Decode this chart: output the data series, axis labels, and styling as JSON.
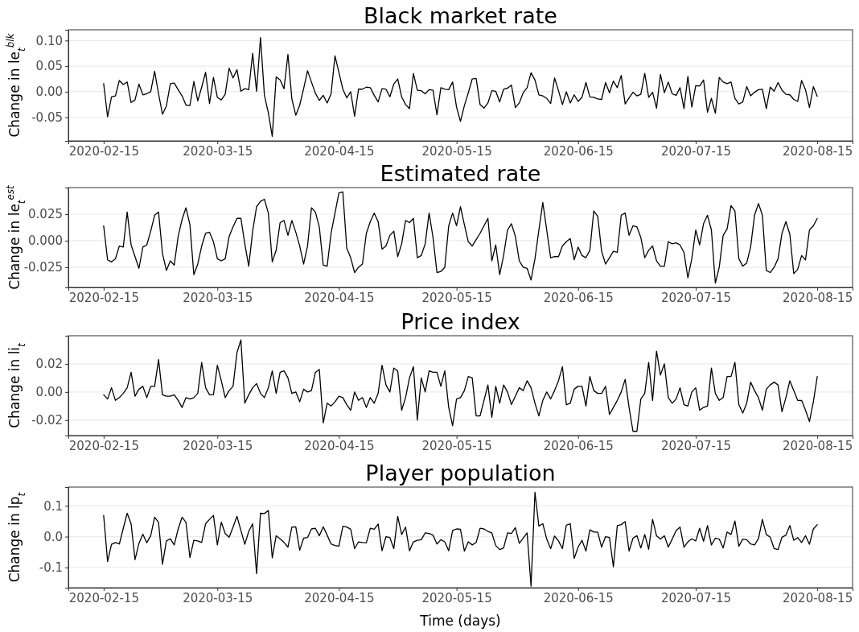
{
  "chart_data": [
    {
      "type": "line",
      "title": "Black market rate",
      "ylabel": "Change in le$_{t}$$^{blk}$",
      "grid": "y",
      "xlim": [
        "2020-02-06",
        "2020-08-24"
      ],
      "xticks": [
        "2020-02-15",
        "2020-03-15",
        "2020-04-15",
        "2020-05-15",
        "2020-06-15",
        "2020-07-15",
        "2020-08-15"
      ],
      "ylim": [
        -0.096,
        0.121
      ],
      "yticks": [
        {
          "value": -0.05,
          "label": "-0.05"
        },
        {
          "value": 0,
          "label": "0.00"
        },
        {
          "value": 0.05,
          "label": "0.05"
        },
        {
          "value": 0.1,
          "label": "0.10"
        }
      ],
      "x": [
        "2020-02-15",
        "2020-02-16",
        "2020-02-17",
        "2020-02-18",
        "2020-02-19",
        "2020-02-20",
        "2020-02-21",
        "2020-02-22",
        "2020-02-23",
        "2020-02-24",
        "2020-02-25",
        "2020-02-26",
        "2020-02-27",
        "2020-02-28",
        "2020-02-29",
        "2020-03-01",
        "2020-03-02",
        "2020-03-03",
        "2020-03-04",
        "2020-03-05",
        "2020-03-06",
        "2020-03-07",
        "2020-03-08",
        "2020-03-09",
        "2020-03-10",
        "2020-03-11",
        "2020-03-12",
        "2020-03-13",
        "2020-03-14",
        "2020-03-15",
        "2020-03-16",
        "2020-03-17",
        "2020-03-18",
        "2020-03-19",
        "2020-03-20",
        "2020-03-21",
        "2020-03-22",
        "2020-03-23",
        "2020-03-24",
        "2020-03-25",
        "2020-03-26",
        "2020-03-27",
        "2020-03-28",
        "2020-03-29",
        "2020-03-30",
        "2020-03-31",
        "2020-04-01",
        "2020-04-02",
        "2020-04-03",
        "2020-04-04",
        "2020-04-05",
        "2020-04-06",
        "2020-04-07",
        "2020-04-08",
        "2020-04-09",
        "2020-04-10",
        "2020-04-11",
        "2020-04-12",
        "2020-04-13",
        "2020-04-14",
        "2020-04-15",
        "2020-04-16",
        "2020-04-17",
        "2020-04-18",
        "2020-04-19",
        "2020-04-20",
        "2020-04-21",
        "2020-04-22",
        "2020-04-23",
        "2020-04-24",
        "2020-04-25",
        "2020-04-26",
        "2020-04-27",
        "2020-04-28",
        "2020-04-29",
        "2020-04-30",
        "2020-05-01",
        "2020-05-02",
        "2020-05-03",
        "2020-05-04",
        "2020-05-05",
        "2020-05-06",
        "2020-05-07",
        "2020-05-08",
        "2020-05-09",
        "2020-05-10",
        "2020-05-11",
        "2020-05-12",
        "2020-05-13",
        "2020-05-14",
        "2020-05-15",
        "2020-05-16",
        "2020-05-17",
        "2020-05-18",
        "2020-05-19",
        "2020-05-20",
        "2020-05-21",
        "2020-05-22",
        "2020-05-23",
        "2020-05-24",
        "2020-05-25",
        "2020-05-26",
        "2020-05-27",
        "2020-05-28",
        "2020-05-29",
        "2020-05-30",
        "2020-05-31",
        "2020-06-01",
        "2020-06-02",
        "2020-06-03",
        "2020-06-04",
        "2020-06-05",
        "2020-06-06",
        "2020-06-07",
        "2020-06-08",
        "2020-06-09",
        "2020-06-10",
        "2020-06-11",
        "2020-06-12",
        "2020-06-13",
        "2020-06-14",
        "2020-06-15",
        "2020-06-16",
        "2020-06-17",
        "2020-06-18",
        "2020-06-19",
        "2020-06-20",
        "2020-06-21",
        "2020-06-22",
        "2020-06-23",
        "2020-06-24",
        "2020-06-25",
        "2020-06-26",
        "2020-06-27",
        "2020-06-28",
        "2020-06-29",
        "2020-06-30",
        "2020-07-01",
        "2020-07-02",
        "2020-07-03",
        "2020-07-04",
        "2020-07-05",
        "2020-07-06",
        "2020-07-07",
        "2020-07-08",
        "2020-07-09",
        "2020-07-10",
        "2020-07-11",
        "2020-07-12",
        "2020-07-13",
        "2020-07-14",
        "2020-07-15",
        "2020-07-16",
        "2020-07-17",
        "2020-07-18",
        "2020-07-19",
        "2020-07-20",
        "2020-07-21",
        "2020-07-22",
        "2020-07-23",
        "2020-07-24",
        "2020-07-25",
        "2020-07-26",
        "2020-07-27",
        "2020-07-28",
        "2020-07-29",
        "2020-07-30",
        "2020-07-31",
        "2020-08-01",
        "2020-08-02",
        "2020-08-03",
        "2020-08-04",
        "2020-08-05",
        "2020-08-06",
        "2020-08-07",
        "2020-08-08",
        "2020-08-09",
        "2020-08-10",
        "2020-08-11",
        "2020-08-12",
        "2020-08-13",
        "2020-08-14",
        "2020-08-15"
      ],
      "series": [
        {
          "color": "#000000",
          "values": [
            0.016,
            -0.049,
            -0.01,
            -0.008,
            0.022,
            0.014,
            0.019,
            -0.021,
            -0.016,
            0.015,
            -0.006,
            -0.004,
            0.0,
            0.04,
            -0.004,
            -0.044,
            -0.028,
            0.016,
            0.017,
            0.004,
            -0.008,
            -0.026,
            -0.027,
            0.02,
            -0.018,
            0.009,
            0.038,
            -0.023,
            0.028,
            -0.011,
            -0.016,
            -0.005,
            0.046,
            0.027,
            0.043,
            0.001,
            0.006,
            0.004,
            0.075,
            0.001,
            0.106,
            -0.007,
            -0.041,
            -0.087,
            0.029,
            0.023,
            0.006,
            0.073,
            -0.014,
            -0.046,
            -0.026,
            0.006,
            0.041,
            0.019,
            -0.003,
            -0.017,
            -0.007,
            -0.022,
            -0.004,
            0.07,
            0.038,
            0.005,
            -0.012,
            0.0,
            -0.048,
            0.005,
            0.005,
            0.009,
            0.008,
            -0.007,
            -0.02,
            0.006,
            0.005,
            -0.01,
            0.015,
            0.025,
            -0.01,
            -0.025,
            -0.033,
            0.036,
            0.003,
            0.002,
            -0.004,
            0.004,
            0.003,
            -0.045,
            0.008,
            0.005,
            0.004,
            0.019,
            -0.03,
            -0.058,
            -0.027,
            -0.002,
            0.025,
            0.026,
            -0.025,
            -0.032,
            -0.022,
            0.002,
            0.001,
            -0.02,
            0.005,
            0.007,
            0.013,
            -0.031,
            -0.022,
            -0.002,
            0.008,
            0.037,
            0.023,
            -0.006,
            -0.008,
            -0.013,
            -0.023,
            0.027,
            0.002,
            -0.025,
            0.0,
            -0.022,
            -0.006,
            -0.019,
            -0.011,
            0.018,
            -0.01,
            -0.011,
            -0.014,
            -0.015,
            0.018,
            -0.002,
            0.021,
            0.008,
            0.032,
            -0.024,
            -0.012,
            -0.001,
            -0.008,
            -0.005,
            0.036,
            -0.011,
            -0.001,
            -0.032,
            0.034,
            -0.002,
            0.019,
            -0.004,
            -0.007,
            0.008,
            -0.033,
            0.03,
            -0.03,
            0.012,
            0.011,
            0.023,
            -0.04,
            -0.013,
            -0.042,
            0.028,
            0.019,
            0.016,
            0.019,
            -0.013,
            -0.024,
            -0.02,
            0.01,
            -0.008,
            -0.001,
            0.004,
            0.005,
            -0.033,
            0.009,
            0.001,
            0.018,
            0.003,
            -0.005,
            -0.006,
            -0.015,
            -0.019,
            0.022,
            0.004,
            -0.031,
            0.01,
            -0.009
          ]
        }
      ]
    },
    {
      "type": "line",
      "title": "Estimated rate",
      "ylabel": "Change in le$_{t}$$^{est}$",
      "grid": "y",
      "xlim": [
        "2020-02-06",
        "2020-08-24"
      ],
      "xticks": [
        "2020-02-15",
        "2020-03-15",
        "2020-04-15",
        "2020-05-15",
        "2020-06-15",
        "2020-07-15",
        "2020-08-15"
      ],
      "ylim": [
        -0.044,
        0.05
      ],
      "yticks": [
        {
          "value": -0.025,
          "label": "-0.025"
        },
        {
          "value": 0,
          "label": "0.000"
        },
        {
          "value": 0.025,
          "label": "0.025"
        }
      ],
      "x": [
        "2020-02-15",
        "2020-02-16",
        "2020-02-17",
        "2020-02-18",
        "2020-02-19",
        "2020-02-20",
        "2020-02-21",
        "2020-02-22",
        "2020-02-23",
        "2020-02-24",
        "2020-02-25",
        "2020-02-26",
        "2020-02-27",
        "2020-02-28",
        "2020-02-29",
        "2020-03-01",
        "2020-03-02",
        "2020-03-03",
        "2020-03-04",
        "2020-03-05",
        "2020-03-06",
        "2020-03-07",
        "2020-03-08",
        "2020-03-09",
        "2020-03-10",
        "2020-03-11",
        "2020-03-12",
        "2020-03-13",
        "2020-03-14",
        "2020-03-15",
        "2020-03-16",
        "2020-03-17",
        "2020-03-18",
        "2020-03-19",
        "2020-03-20",
        "2020-03-21",
        "2020-03-22",
        "2020-03-23",
        "2020-03-24",
        "2020-03-25",
        "2020-03-26",
        "2020-03-27",
        "2020-03-28",
        "2020-03-29",
        "2020-03-30",
        "2020-03-31",
        "2020-04-01",
        "2020-04-02",
        "2020-04-03",
        "2020-04-04",
        "2020-04-05",
        "2020-04-06",
        "2020-04-07",
        "2020-04-08",
        "2020-04-09",
        "2020-04-10",
        "2020-04-11",
        "2020-04-12",
        "2020-04-13",
        "2020-04-14",
        "2020-04-15",
        "2020-04-16",
        "2020-04-17",
        "2020-04-18",
        "2020-04-19",
        "2020-04-20",
        "2020-04-21",
        "2020-04-22",
        "2020-04-23",
        "2020-04-24",
        "2020-04-25",
        "2020-04-26",
        "2020-04-27",
        "2020-04-28",
        "2020-04-29",
        "2020-04-30",
        "2020-05-01",
        "2020-05-02",
        "2020-05-03",
        "2020-05-04",
        "2020-05-05",
        "2020-05-06",
        "2020-05-07",
        "2020-05-08",
        "2020-05-09",
        "2020-05-10",
        "2020-05-11",
        "2020-05-12",
        "2020-05-13",
        "2020-05-14",
        "2020-05-15",
        "2020-05-16",
        "2020-05-17",
        "2020-05-18",
        "2020-05-19",
        "2020-05-20",
        "2020-05-21",
        "2020-05-22",
        "2020-05-23",
        "2020-05-24",
        "2020-05-25",
        "2020-05-26",
        "2020-05-27",
        "2020-05-28",
        "2020-05-29",
        "2020-05-30",
        "2020-05-31",
        "2020-06-01",
        "2020-06-02",
        "2020-06-03",
        "2020-06-04",
        "2020-06-05",
        "2020-06-06",
        "2020-06-07",
        "2020-06-08",
        "2020-06-09",
        "2020-06-10",
        "2020-06-11",
        "2020-06-12",
        "2020-06-13",
        "2020-06-14",
        "2020-06-15",
        "2020-06-16",
        "2020-06-17",
        "2020-06-18",
        "2020-06-19",
        "2020-06-20",
        "2020-06-21",
        "2020-06-22",
        "2020-06-23",
        "2020-06-24",
        "2020-06-25",
        "2020-06-26",
        "2020-06-27",
        "2020-06-28",
        "2020-06-29",
        "2020-06-30",
        "2020-07-01",
        "2020-07-02",
        "2020-07-03",
        "2020-07-04",
        "2020-07-05",
        "2020-07-06",
        "2020-07-07",
        "2020-07-08",
        "2020-07-09",
        "2020-07-10",
        "2020-07-11",
        "2020-07-12",
        "2020-07-13",
        "2020-07-14",
        "2020-07-15",
        "2020-07-16",
        "2020-07-17",
        "2020-07-18",
        "2020-07-19",
        "2020-07-20",
        "2020-07-21",
        "2020-07-22",
        "2020-07-23",
        "2020-07-24",
        "2020-07-25",
        "2020-07-26",
        "2020-07-27",
        "2020-07-28",
        "2020-07-29",
        "2020-07-30",
        "2020-07-31",
        "2020-08-01",
        "2020-08-02",
        "2020-08-03",
        "2020-08-04",
        "2020-08-05",
        "2020-08-06",
        "2020-08-07",
        "2020-08-08",
        "2020-08-09",
        "2020-08-10",
        "2020-08-11",
        "2020-08-12",
        "2020-08-13",
        "2020-08-14",
        "2020-08-15"
      ],
      "series": [
        {
          "color": "#000000",
          "values": [
            0.014,
            -0.018,
            -0.02,
            -0.017,
            -0.005,
            -0.006,
            0.027,
            -0.004,
            -0.015,
            -0.026,
            -0.006,
            -0.004,
            0.009,
            0.024,
            0.027,
            -0.012,
            -0.028,
            -0.019,
            -0.023,
            0.004,
            0.02,
            0.031,
            0.015,
            -0.032,
            -0.022,
            -0.005,
            0.007,
            0.008,
            -0.001,
            -0.017,
            -0.019,
            -0.017,
            0.004,
            0.013,
            0.021,
            0.021,
            -0.003,
            -0.024,
            0.009,
            0.032,
            0.037,
            0.039,
            0.026,
            -0.02,
            -0.009,
            0.017,
            0.019,
            0.005,
            0.019,
            0.008,
            -0.005,
            -0.022,
            -0.005,
            0.031,
            0.027,
            0.013,
            -0.023,
            -0.024,
            0.007,
            0.026,
            0.045,
            0.046,
            -0.007,
            -0.016,
            -0.03,
            -0.025,
            -0.022,
            0.007,
            0.018,
            0.026,
            0.018,
            -0.008,
            -0.005,
            0.005,
            0.009,
            -0.015,
            -0.003,
            0.019,
            0.017,
            0.021,
            -0.016,
            -0.014,
            -0.003,
            0.026,
            0.003,
            -0.03,
            -0.029,
            -0.025,
            0.014,
            0.026,
            0.014,
            0.032,
            0.015,
            -0.001,
            -0.005,
            0.001,
            0.007,
            0.014,
            0.021,
            -0.019,
            -0.004,
            -0.032,
            -0.014,
            0.01,
            0.016,
            0.004,
            -0.019,
            -0.025,
            -0.026,
            -0.037,
            -0.017,
            0.01,
            0.036,
            0.01,
            -0.016,
            -0.015,
            -0.015,
            -0.005,
            -0.001,
            0.002,
            -0.018,
            -0.006,
            -0.014,
            -0.016,
            -0.009,
            0.028,
            0.023,
            -0.01,
            -0.022,
            -0.016,
            -0.01,
            -0.011,
            0.024,
            0.026,
            0.005,
            0.014,
            0.013,
            0.003,
            -0.016,
            -0.009,
            -0.005,
            -0.019,
            -0.024,
            -0.024,
            -0.001,
            -0.003,
            -0.002,
            -0.004,
            -0.011,
            -0.035,
            -0.017,
            0.01,
            -0.004,
            0.016,
            0.024,
            0.01,
            -0.04,
            -0.025,
            0.005,
            0.011,
            0.033,
            0.028,
            -0.017,
            -0.024,
            -0.021,
            -0.006,
            0.024,
            0.035,
            0.024,
            -0.028,
            -0.03,
            -0.025,
            -0.017,
            0.007,
            0.018,
            0.006,
            -0.031,
            -0.027,
            -0.014,
            -0.018,
            0.01,
            0.014,
            0.021
          ]
        }
      ]
    },
    {
      "type": "line",
      "title": "Price index",
      "ylabel": "Change in li$_{t}$",
      "grid": "y",
      "xlim": [
        "2020-02-06",
        "2020-08-24"
      ],
      "xticks": [
        "2020-02-15",
        "2020-03-15",
        "2020-04-15",
        "2020-05-15",
        "2020-06-15",
        "2020-07-15",
        "2020-08-15"
      ],
      "ylim": [
        -0.031,
        0.04
      ],
      "yticks": [
        {
          "value": -0.02,
          "label": "-0.02"
        },
        {
          "value": 0,
          "label": "0.00"
        },
        {
          "value": 0.02,
          "label": "0.02"
        }
      ],
      "x": [
        "2020-02-15",
        "2020-02-16",
        "2020-02-17",
        "2020-02-18",
        "2020-02-19",
        "2020-02-20",
        "2020-02-21",
        "2020-02-22",
        "2020-02-23",
        "2020-02-24",
        "2020-02-25",
        "2020-02-26",
        "2020-02-27",
        "2020-02-28",
        "2020-02-29",
        "2020-03-01",
        "2020-03-02",
        "2020-03-03",
        "2020-03-04",
        "2020-03-05",
        "2020-03-06",
        "2020-03-07",
        "2020-03-08",
        "2020-03-09",
        "2020-03-10",
        "2020-03-11",
        "2020-03-12",
        "2020-03-13",
        "2020-03-14",
        "2020-03-15",
        "2020-03-16",
        "2020-03-17",
        "2020-03-18",
        "2020-03-19",
        "2020-03-20",
        "2020-03-21",
        "2020-03-22",
        "2020-03-23",
        "2020-03-24",
        "2020-03-25",
        "2020-03-26",
        "2020-03-27",
        "2020-03-28",
        "2020-03-29",
        "2020-03-30",
        "2020-03-31",
        "2020-04-01",
        "2020-04-02",
        "2020-04-03",
        "2020-04-04",
        "2020-04-05",
        "2020-04-06",
        "2020-04-07",
        "2020-04-08",
        "2020-04-09",
        "2020-04-10",
        "2020-04-11",
        "2020-04-12",
        "2020-04-13",
        "2020-04-14",
        "2020-04-15",
        "2020-04-16",
        "2020-04-17",
        "2020-04-18",
        "2020-04-19",
        "2020-04-20",
        "2020-04-21",
        "2020-04-22",
        "2020-04-23",
        "2020-04-24",
        "2020-04-25",
        "2020-04-26",
        "2020-04-27",
        "2020-04-28",
        "2020-04-29",
        "2020-04-30",
        "2020-05-01",
        "2020-05-02",
        "2020-05-03",
        "2020-05-04",
        "2020-05-05",
        "2020-05-06",
        "2020-05-07",
        "2020-05-08",
        "2020-05-09",
        "2020-05-10",
        "2020-05-11",
        "2020-05-12",
        "2020-05-13",
        "2020-05-14",
        "2020-05-15",
        "2020-05-16",
        "2020-05-17",
        "2020-05-18",
        "2020-05-19",
        "2020-05-20",
        "2020-05-21",
        "2020-05-22",
        "2020-05-23",
        "2020-05-24",
        "2020-05-25",
        "2020-05-26",
        "2020-05-27",
        "2020-05-28",
        "2020-05-29",
        "2020-05-30",
        "2020-05-31",
        "2020-06-01",
        "2020-06-02",
        "2020-06-03",
        "2020-06-04",
        "2020-06-05",
        "2020-06-06",
        "2020-06-07",
        "2020-06-08",
        "2020-06-09",
        "2020-06-10",
        "2020-06-11",
        "2020-06-12",
        "2020-06-13",
        "2020-06-14",
        "2020-06-15",
        "2020-06-16",
        "2020-06-17",
        "2020-06-18",
        "2020-06-19",
        "2020-06-20",
        "2020-06-21",
        "2020-06-22",
        "2020-06-23",
        "2020-06-24",
        "2020-06-25",
        "2020-06-26",
        "2020-06-27",
        "2020-06-28",
        "2020-06-29",
        "2020-06-30",
        "2020-07-01",
        "2020-07-02",
        "2020-07-03",
        "2020-07-04",
        "2020-07-05",
        "2020-07-06",
        "2020-07-07",
        "2020-07-08",
        "2020-07-09",
        "2020-07-10",
        "2020-07-11",
        "2020-07-12",
        "2020-07-13",
        "2020-07-14",
        "2020-07-15",
        "2020-07-16",
        "2020-07-17",
        "2020-07-18",
        "2020-07-19",
        "2020-07-20",
        "2020-07-21",
        "2020-07-22",
        "2020-07-23",
        "2020-07-24",
        "2020-07-25",
        "2020-07-26",
        "2020-07-27",
        "2020-07-28",
        "2020-07-29",
        "2020-07-30",
        "2020-07-31",
        "2020-08-01",
        "2020-08-02",
        "2020-08-03",
        "2020-08-04",
        "2020-08-05",
        "2020-08-06",
        "2020-08-07",
        "2020-08-08",
        "2020-08-09",
        "2020-08-10",
        "2020-08-11",
        "2020-08-12",
        "2020-08-13",
        "2020-08-14",
        "2020-08-15"
      ],
      "series": [
        {
          "color": "#000000",
          "values": [
            -0.002,
            -0.005,
            0.003,
            -0.006,
            -0.004,
            -0.001,
            0.003,
            0.014,
            -0.003,
            0.002,
            0.004,
            -0.004,
            0.004,
            0.004,
            0.023,
            -0.002,
            -0.003,
            -0.003,
            -0.002,
            -0.006,
            -0.011,
            -0.004,
            -0.005,
            -0.004,
            -0.001,
            0.021,
            0.003,
            -0.002,
            -0.002,
            0.019,
            0.008,
            -0.004,
            0.001,
            0.004,
            0.028,
            0.037,
            -0.008,
            -0.002,
            0.003,
            0.006,
            -0.001,
            -0.004,
            0.003,
            0.015,
            -0.001,
            0.014,
            0.015,
            0.01,
            -0.001,
            0.0,
            -0.007,
            0.002,
            0.0,
            0.001,
            0.014,
            0.016,
            -0.022,
            -0.008,
            -0.01,
            -0.007,
            -0.003,
            -0.004,
            -0.009,
            -0.013,
            0.0,
            -0.006,
            -0.004,
            -0.011,
            -0.004,
            -0.008,
            -0.001,
            0.019,
            0.005,
            0.0,
            0.017,
            0.015,
            -0.013,
            -0.004,
            0.01,
            0.018,
            -0.02,
            0.01,
            0.0,
            0.015,
            0.014,
            0.014,
            0.004,
            0.015,
            -0.011,
            -0.024,
            -0.005,
            -0.004,
            0.001,
            0.011,
            0.01,
            -0.017,
            -0.017,
            -0.006,
            0.005,
            -0.018,
            0.004,
            -0.008,
            0.005,
            0.0,
            -0.009,
            -0.003,
            0.003,
            0.001,
            0.008,
            0.003,
            -0.008,
            -0.017,
            -0.006,
            0.0,
            -0.005,
            0.001,
            0.008,
            0.018,
            -0.009,
            -0.008,
            0.002,
            0.004,
            0.004,
            -0.01,
            0.011,
            0.001,
            -0.001,
            -0.001,
            0.004,
            -0.016,
            -0.011,
            -0.006,
            0.0,
            0.009,
            -0.011,
            -0.028,
            -0.028,
            -0.005,
            -0.001,
            0.021,
            -0.006,
            0.029,
            0.012,
            0.02,
            -0.004,
            -0.008,
            -0.005,
            0.003,
            -0.009,
            -0.01,
            0.0,
            0.003,
            -0.013,
            -0.011,
            -0.01,
            0.017,
            -0.001,
            -0.006,
            -0.004,
            0.011,
            0.011,
            0.021,
            -0.009,
            -0.015,
            -0.008,
            0.007,
            0.001,
            -0.004,
            -0.013,
            0.002,
            0.005,
            0.007,
            0.005,
            -0.014,
            -0.004,
            0.008,
            0.001,
            -0.006,
            -0.006,
            -0.013,
            -0.021,
            -0.007,
            0.011
          ]
        }
      ]
    },
    {
      "type": "line",
      "title": "Player population",
      "ylabel": "Change in lp$_{t}$",
      "xlabel": "Time (days)",
      "grid": "y",
      "xlim": [
        "2020-02-06",
        "2020-08-24"
      ],
      "xticks": [
        "2020-02-15",
        "2020-03-15",
        "2020-04-15",
        "2020-05-15",
        "2020-06-15",
        "2020-07-15",
        "2020-08-15"
      ],
      "ylim": [
        -0.166,
        0.161
      ],
      "yticks": [
        -0.1,
        {
          "value": 0,
          "label": "0.0"
        },
        0.1
      ],
      "x": [
        "2020-02-15",
        "2020-02-16",
        "2020-02-17",
        "2020-02-18",
        "2020-02-19",
        "2020-02-20",
        "2020-02-21",
        "2020-02-22",
        "2020-02-23",
        "2020-02-24",
        "2020-02-25",
        "2020-02-26",
        "2020-02-27",
        "2020-02-28",
        "2020-02-29",
        "2020-03-01",
        "2020-03-02",
        "2020-03-03",
        "2020-03-04",
        "2020-03-05",
        "2020-03-06",
        "2020-03-07",
        "2020-03-08",
        "2020-03-09",
        "2020-03-10",
        "2020-03-11",
        "2020-03-12",
        "2020-03-13",
        "2020-03-14",
        "2020-03-15",
        "2020-03-16",
        "2020-03-17",
        "2020-03-18",
        "2020-03-19",
        "2020-03-20",
        "2020-03-21",
        "2020-03-22",
        "2020-03-23",
        "2020-03-24",
        "2020-03-25",
        "2020-03-26",
        "2020-03-27",
        "2020-03-28",
        "2020-03-29",
        "2020-03-30",
        "2020-03-31",
        "2020-04-01",
        "2020-04-02",
        "2020-04-03",
        "2020-04-04",
        "2020-04-05",
        "2020-04-06",
        "2020-04-07",
        "2020-04-08",
        "2020-04-09",
        "2020-04-10",
        "2020-04-11",
        "2020-04-12",
        "2020-04-13",
        "2020-04-14",
        "2020-04-15",
        "2020-04-16",
        "2020-04-17",
        "2020-04-18",
        "2020-04-19",
        "2020-04-20",
        "2020-04-21",
        "2020-04-22",
        "2020-04-23",
        "2020-04-24",
        "2020-04-25",
        "2020-04-26",
        "2020-04-27",
        "2020-04-28",
        "2020-04-29",
        "2020-04-30",
        "2020-05-01",
        "2020-05-02",
        "2020-05-03",
        "2020-05-04",
        "2020-05-05",
        "2020-05-06",
        "2020-05-07",
        "2020-05-08",
        "2020-05-09",
        "2020-05-10",
        "2020-05-11",
        "2020-05-12",
        "2020-05-13",
        "2020-05-14",
        "2020-05-15",
        "2020-05-16",
        "2020-05-17",
        "2020-05-18",
        "2020-05-19",
        "2020-05-20",
        "2020-05-21",
        "2020-05-22",
        "2020-05-23",
        "2020-05-24",
        "2020-05-25",
        "2020-05-26",
        "2020-05-27",
        "2020-05-28",
        "2020-05-29",
        "2020-05-30",
        "2020-05-31",
        "2020-06-01",
        "2020-06-02",
        "2020-06-03",
        "2020-06-04",
        "2020-06-05",
        "2020-06-06",
        "2020-06-07",
        "2020-06-08",
        "2020-06-09",
        "2020-06-10",
        "2020-06-11",
        "2020-06-12",
        "2020-06-13",
        "2020-06-14",
        "2020-06-15",
        "2020-06-16",
        "2020-06-17",
        "2020-06-18",
        "2020-06-19",
        "2020-06-20",
        "2020-06-21",
        "2020-06-22",
        "2020-06-23",
        "2020-06-24",
        "2020-06-25",
        "2020-06-26",
        "2020-06-27",
        "2020-06-28",
        "2020-06-29",
        "2020-06-30",
        "2020-07-01",
        "2020-07-02",
        "2020-07-03",
        "2020-07-04",
        "2020-07-05",
        "2020-07-06",
        "2020-07-07",
        "2020-07-08",
        "2020-07-09",
        "2020-07-10",
        "2020-07-11",
        "2020-07-12",
        "2020-07-13",
        "2020-07-14",
        "2020-07-15",
        "2020-07-16",
        "2020-07-17",
        "2020-07-18",
        "2020-07-19",
        "2020-07-20",
        "2020-07-21",
        "2020-07-22",
        "2020-07-23",
        "2020-07-24",
        "2020-07-25",
        "2020-07-26",
        "2020-07-27",
        "2020-07-28",
        "2020-07-29",
        "2020-07-30",
        "2020-07-31",
        "2020-08-01",
        "2020-08-02",
        "2020-08-03",
        "2020-08-04",
        "2020-08-05",
        "2020-08-06",
        "2020-08-07",
        "2020-08-08",
        "2020-08-09",
        "2020-08-10",
        "2020-08-11",
        "2020-08-12",
        "2020-08-13",
        "2020-08-14",
        "2020-08-15"
      ],
      "series": [
        {
          "color": "#000000",
          "values": [
            0.069,
            -0.081,
            -0.025,
            -0.019,
            -0.024,
            0.027,
            0.076,
            0.042,
            -0.075,
            -0.022,
            0.008,
            -0.02,
            0.003,
            0.063,
            0.046,
            -0.09,
            -0.014,
            -0.007,
            -0.027,
            0.025,
            0.063,
            0.046,
            -0.068,
            -0.012,
            -0.014,
            -0.019,
            0.042,
            0.056,
            0.069,
            -0.027,
            0.047,
            0.01,
            -0.002,
            0.031,
            0.066,
            0.02,
            -0.025,
            0.017,
            0.042,
            -0.12,
            0.076,
            0.075,
            0.085,
            -0.069,
            0.003,
            -0.007,
            -0.019,
            -0.034,
            0.031,
            0.032,
            -0.044,
            -0.005,
            -0.003,
            0.025,
            0.027,
            0.003,
            0.032,
            0.005,
            -0.024,
            -0.029,
            -0.031,
            0.034,
            0.031,
            0.024,
            -0.039,
            -0.017,
            -0.019,
            -0.02,
            0.027,
            0.024,
            0.041,
            -0.046,
            0.0,
            -0.003,
            -0.039,
            0.066,
            0.007,
            0.031,
            -0.046,
            -0.017,
            -0.012,
            -0.01,
            0.012,
            0.01,
            0.005,
            -0.024,
            -0.01,
            -0.017,
            -0.046,
            0.02,
            0.025,
            0.024,
            -0.047,
            -0.017,
            -0.027,
            -0.019,
            0.027,
            0.025,
            0.017,
            0.012,
            -0.029,
            -0.042,
            -0.037,
            0.012,
            0.01,
            0.029,
            -0.022,
            -0.005,
            0.012,
            -0.161,
            0.144,
            0.034,
            0.042,
            -0.008,
            -0.039,
            0.002,
            -0.014,
            -0.039,
            0.037,
            0.042,
            -0.071,
            -0.034,
            -0.012,
            -0.047,
            0.022,
            0.015,
            0.015,
            -0.034,
            0.0,
            -0.003,
            -0.098,
            0.036,
            0.039,
            0.049,
            -0.047,
            -0.005,
            0.003,
            -0.037,
            0.007,
            -0.041,
            0.056,
            0.003,
            -0.008,
            0.003,
            -0.034,
            -0.008,
            0.02,
            0.031,
            -0.034,
            -0.017,
            -0.007,
            -0.014,
            0.027,
            -0.015,
            0.036,
            -0.027,
            -0.005,
            -0.008,
            -0.037,
            0.015,
            0.007,
            0.051,
            -0.031,
            -0.008,
            -0.01,
            -0.024,
            -0.027,
            -0.007,
            0.056,
            0.007,
            -0.002,
            -0.039,
            -0.042,
            -0.002,
            0.005,
            0.036,
            -0.012,
            -0.003,
            -0.019,
            0.003,
            -0.025,
            0.025,
            0.039
          ]
        }
      ]
    }
  ]
}
